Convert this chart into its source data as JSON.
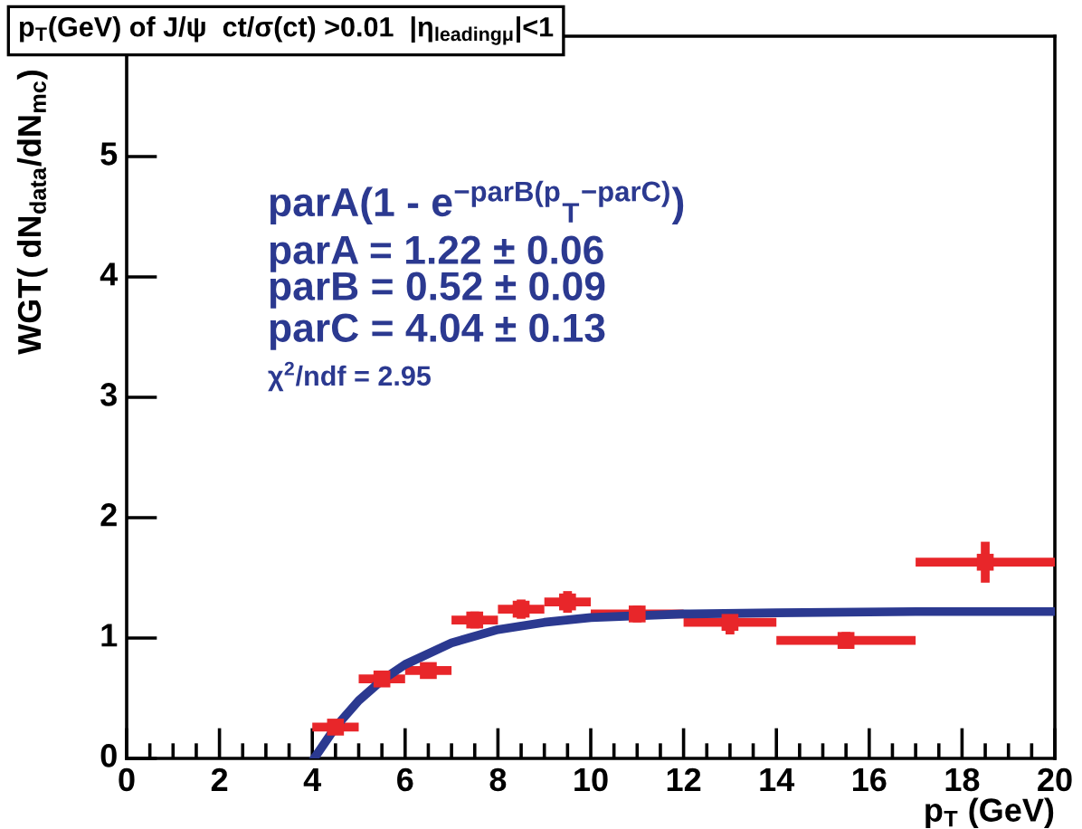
{
  "chart_data": {
    "type": "scatter",
    "title": "p$_{T}$(GeV) of J/ψ  ct/σ(ct) >0.01  |η$_{leadingμ}$|<1",
    "xlabel": "p$_{T}$ (GeV)",
    "ylabel": "WGT( dN$_{data}$/dN$_{mc}$)",
    "series": [
      {
        "color": "#e8262a",
        "marker": "square",
        "x": [
          4.5,
          5.5,
          6.5,
          7.5,
          8.5,
          9.5,
          11,
          13,
          15.5,
          18.5
        ],
        "values": [
          0.26,
          0.66,
          0.73,
          1.15,
          1.24,
          1.3,
          1.2,
          1.13,
          0.98,
          1.63
        ],
        "errors": [
          0.02,
          0.04,
          0.04,
          0.07,
          0.08,
          0.09,
          0.07,
          0.1,
          0.07,
          0.17
        ],
        "xerrors": [
          0.5,
          0.5,
          0.5,
          0.5,
          0.5,
          0.5,
          1,
          1,
          1.5,
          1.5
        ]
      },
      {
        "type": "line",
        "color": "#2b3990",
        "line_style": "solid",
        "x": [
          4.04,
          4.5,
          5,
          5.5,
          6,
          7,
          8,
          9,
          10,
          12,
          14,
          17,
          20
        ],
        "values": [
          0,
          0.26,
          0.48,
          0.65,
          0.78,
          0.96,
          1.07,
          1.13,
          1.17,
          1.2,
          1.21,
          1.22,
          1.22
        ]
      }
    ],
    "annotations": [
      "parA(1 - e$^{−parB(p}$$_{T}$$^{−parC)}$)",
      "parA = 1.22 ± 0.06",
      "parB = 0.52 ± 0.09",
      "parC = 4.04 ± 0.13",
      "χ$^{2}$/ndf = 2.95"
    ],
    "xlim": [
      0,
      20
    ],
    "ylim": [
      0,
      6
    ],
    "xticks": [
      0,
      2,
      4,
      6,
      8,
      10,
      12,
      14,
      16,
      18,
      20
    ],
    "yticks": [
      0,
      1,
      2,
      3,
      4,
      5
    ],
    "grid": false,
    "legend": false
  }
}
